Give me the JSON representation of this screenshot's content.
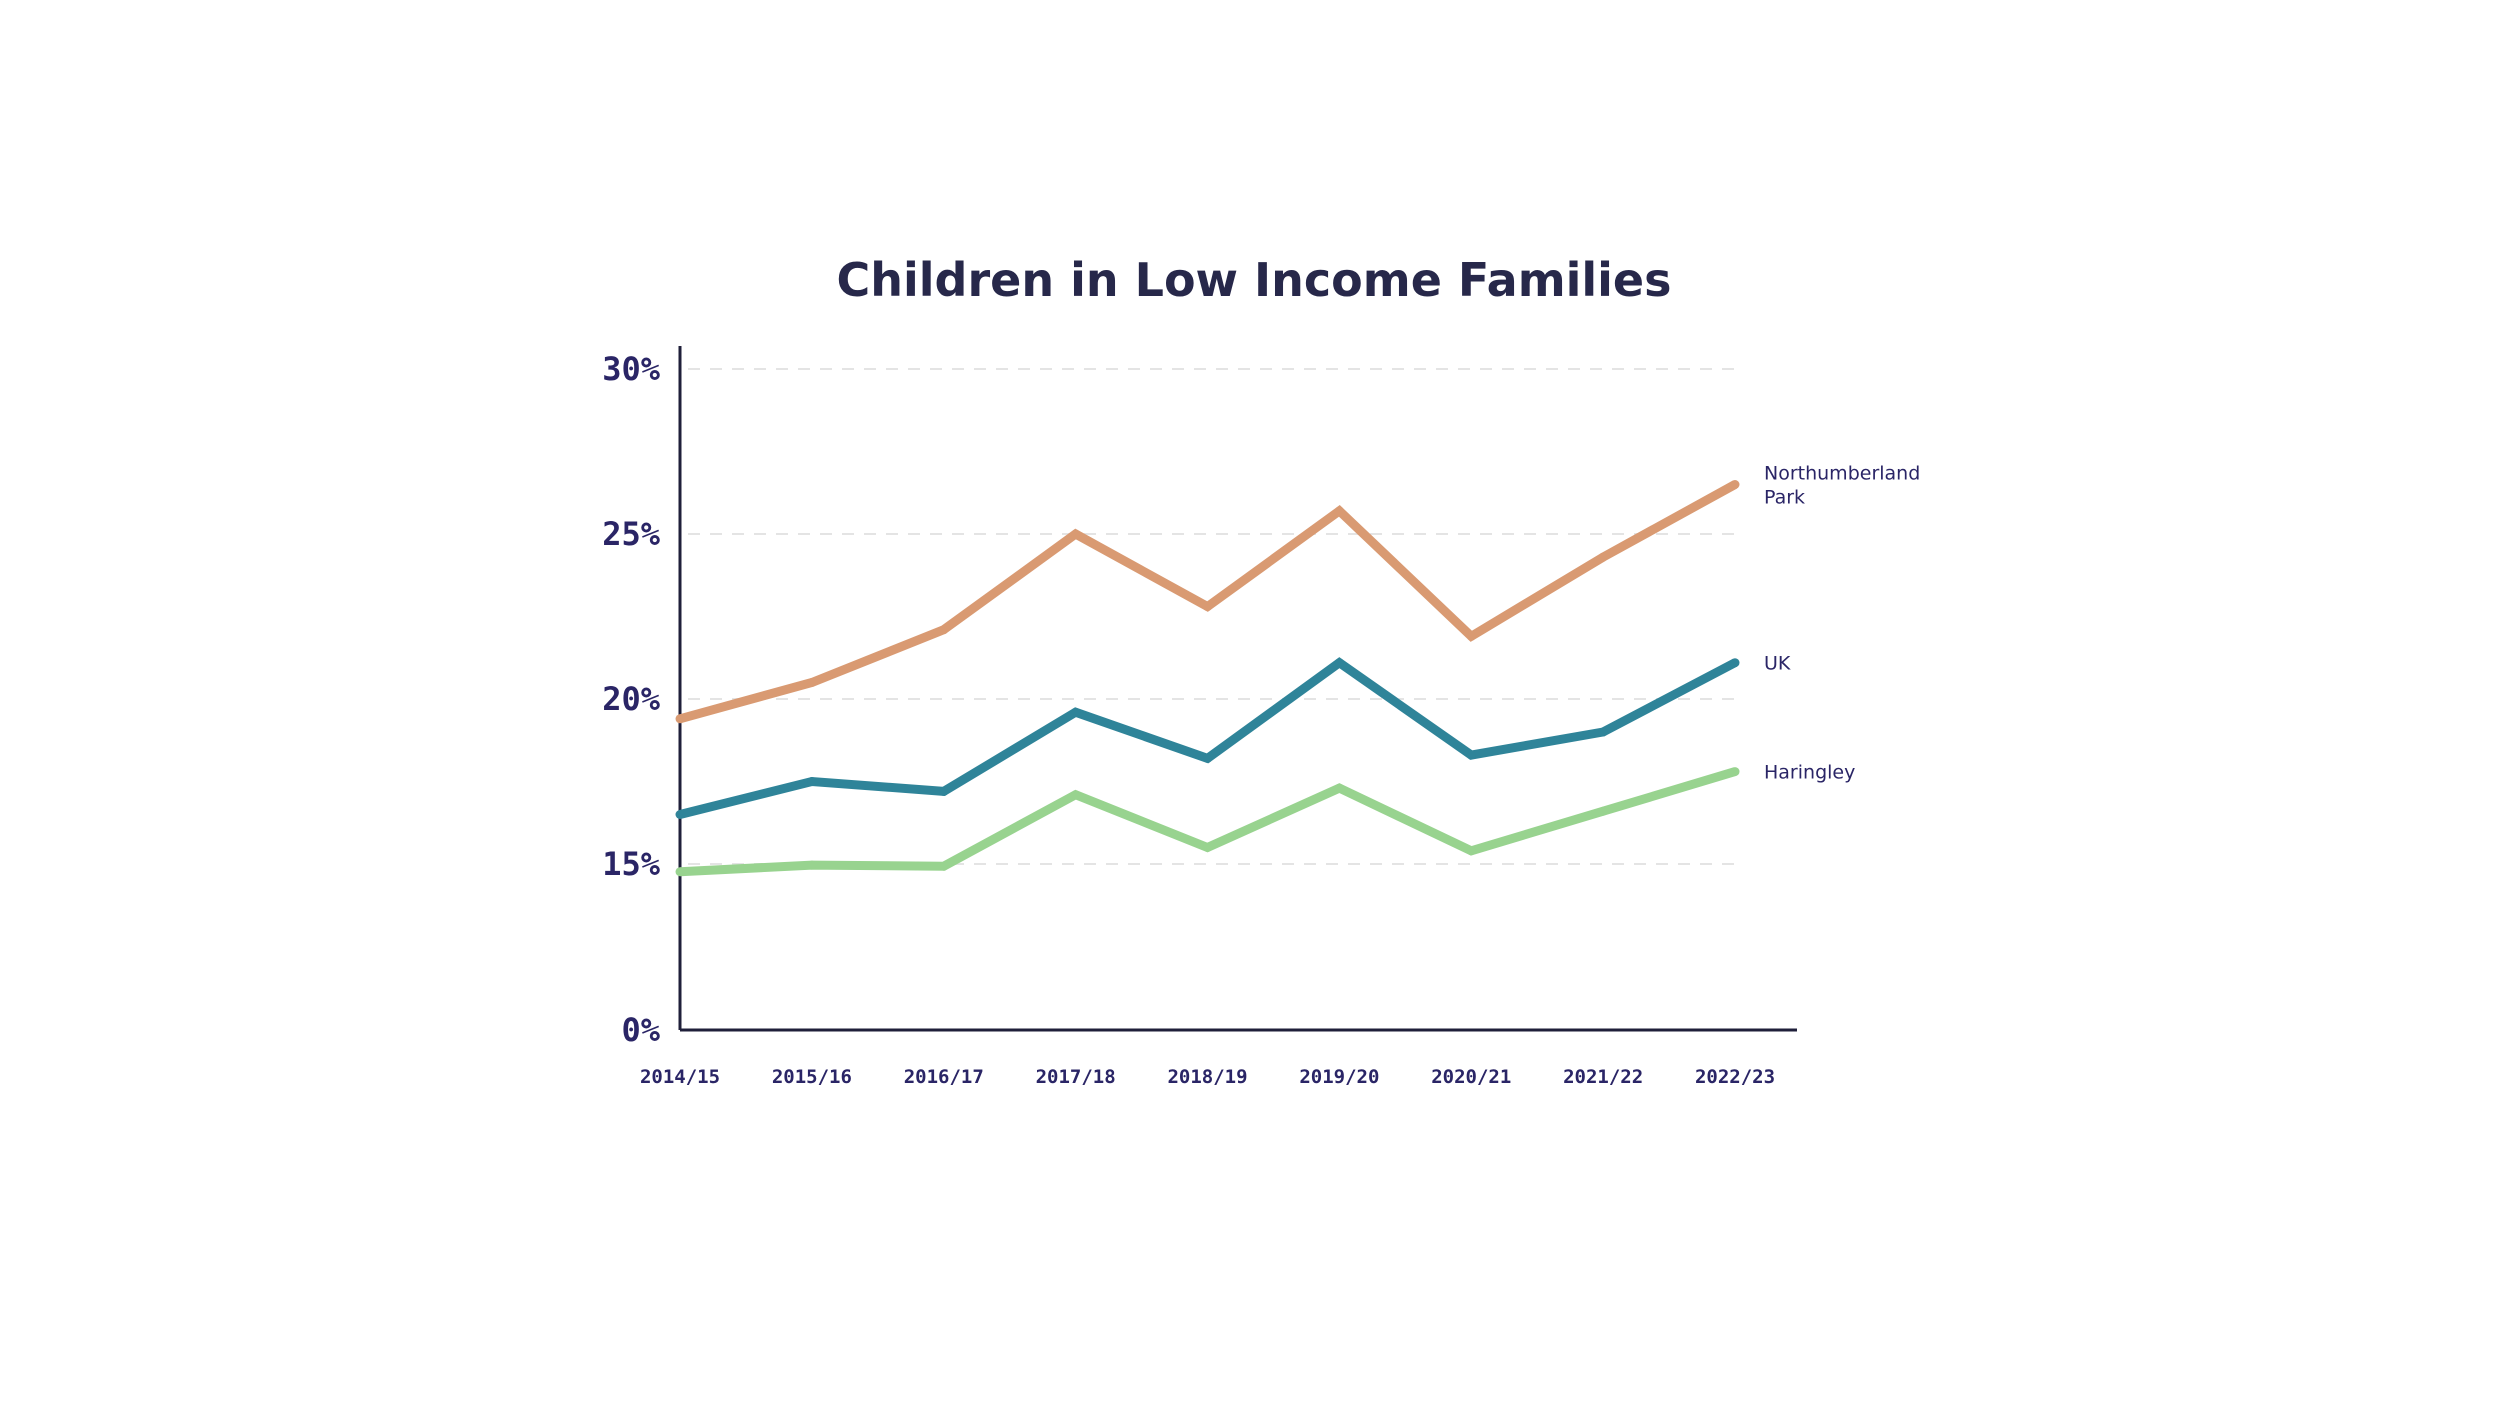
{
  "chart_data": {
    "type": "line",
    "title": "Children in Low Income Families",
    "xlabel": "",
    "ylabel": "",
    "ylim": [
      0,
      30
    ],
    "yticks": [
      0,
      15,
      20,
      25,
      30
    ],
    "ytick_labels": [
      "0%",
      "15%",
      "20%",
      "25%",
      "30%"
    ],
    "grid": true,
    "categories": [
      "2014/15",
      "2015/16",
      "2016/17",
      "2017/18",
      "2018/19",
      "2019/20",
      "2020/21",
      "2021/22",
      "2022/23"
    ],
    "legend_placement": "right (end-of-line labels)",
    "series": [
      {
        "name": "Northumberland Park",
        "label_lines": [
          "Northumberland",
          "Park"
        ],
        "color": "#d99a72",
        "values": [
          19.4,
          20.5,
          22.1,
          25.0,
          22.8,
          25.7,
          21.9,
          24.3,
          26.5
        ]
      },
      {
        "name": "UK",
        "label_lines": [
          "UK"
        ],
        "color": "#2f8499",
        "values": [
          16.5,
          17.5,
          17.2,
          19.6,
          18.2,
          21.1,
          18.3,
          19.0,
          21.1
        ]
      },
      {
        "name": "Haringley",
        "label_lines": [
          "Haringley"
        ],
        "color": "#98d38f",
        "values": [
          14.3,
          14.9,
          14.8,
          17.1,
          15.5,
          17.3,
          15.4,
          16.6,
          17.8
        ]
      }
    ]
  }
}
